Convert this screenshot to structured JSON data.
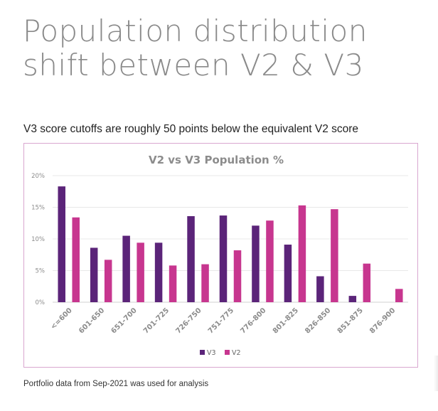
{
  "slide": {
    "title_line1": "Population distribution",
    "title_line2": "shift between V2 & V3",
    "subtitle": "V3 score cutoffs are roughly 50 points below the equivalent V2 score",
    "footnote": "Portfolio data from Sep-2021 was used for analysis"
  },
  "chart_data": {
    "type": "bar",
    "title": "V2 vs V3 Population %",
    "xlabel": "",
    "ylabel": "",
    "categories": [
      "<=600",
      "601-650",
      "651-700",
      "701-725",
      "726-750",
      "751-775",
      "776-800",
      "801-825",
      "826-850",
      "851-875",
      "876-900"
    ],
    "series": [
      {
        "name": "V3",
        "color": "#5b2479",
        "values": [
          18.3,
          8.6,
          10.5,
          9.4,
          13.6,
          13.7,
          12.1,
          9.1,
          4.1,
          1.0,
          0
        ]
      },
      {
        "name": "V2",
        "color": "#c7368f",
        "values": [
          13.4,
          6.7,
          9.4,
          5.8,
          6.0,
          8.2,
          12.9,
          15.3,
          14.7,
          6.1,
          2.1
        ]
      }
    ],
    "ylim": [
      0,
      20
    ],
    "yticks": [
      "0%",
      "5%",
      "10%",
      "15%",
      "20%"
    ],
    "grid": true,
    "legend_position": "bottom-center"
  }
}
